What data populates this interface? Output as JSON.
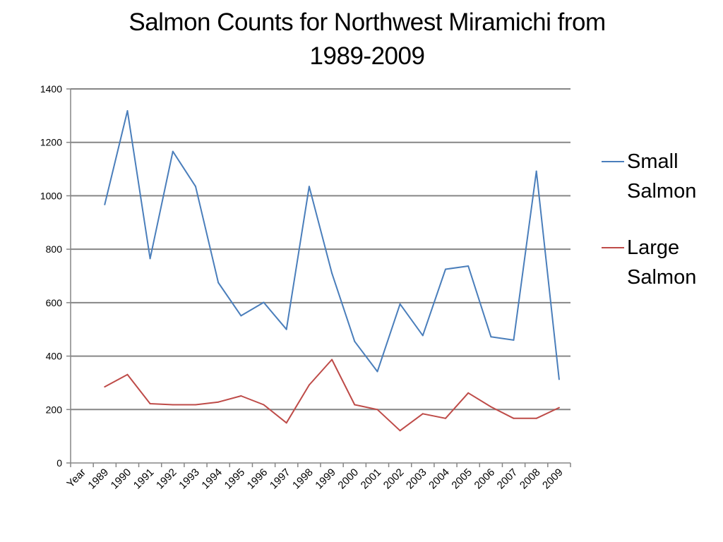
{
  "chart_data": {
    "type": "line",
    "title_lines": [
      "Salmon Counts for Northwest Miramichi from",
      "1989-2009"
    ],
    "categories": [
      "Year",
      "1989",
      "1990",
      "1991",
      "1992",
      "1993",
      "1994",
      "1995",
      "1996",
      "1997",
      "1998",
      "1999",
      "2000",
      "2001",
      "2002",
      "2003",
      "2004",
      "2005",
      "2006",
      "2007",
      "2008",
      "2009"
    ],
    "ylim": [
      0,
      1400
    ],
    "yticks": [
      0,
      200,
      400,
      600,
      800,
      1000,
      1200,
      1400
    ],
    "grid": true,
    "legend_position": "right",
    "series": [
      {
        "name": "Small Salmon",
        "legend_lines": [
          "Small",
          "Salmon"
        ],
        "color": "#4a7ebb",
        "values": [
          null,
          967,
          1318,
          765,
          1166,
          1035,
          675,
          551,
          601,
          500,
          1035,
          710,
          455,
          342,
          595,
          477,
          725,
          737,
          472,
          460,
          1092,
          313
        ]
      },
      {
        "name": "Large Salmon",
        "legend_lines": [
          "Large",
          "Salmon"
        ],
        "color": "#be4b48",
        "values": [
          null,
          285,
          331,
          222,
          218,
          218,
          228,
          251,
          218,
          150,
          292,
          387,
          218,
          200,
          121,
          184,
          167,
          262,
          210,
          167,
          167,
          207
        ]
      }
    ]
  }
}
